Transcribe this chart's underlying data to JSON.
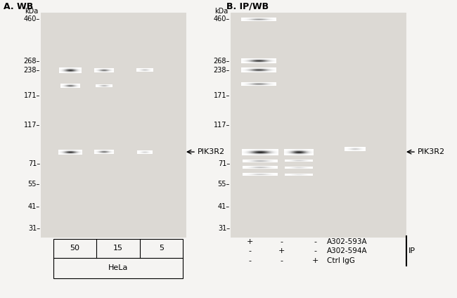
{
  "panel_a_title": "A. WB",
  "panel_b_title": "B. IP/WB",
  "kda_label": "kDa",
  "markers": [
    460,
    268,
    238,
    171,
    117,
    71,
    55,
    41,
    31
  ],
  "marker_labels": [
    "460",
    "268",
    "238",
    "171",
    "117",
    "71",
    "55",
    "41",
    "31"
  ],
  "pik3r2_arrow_label": "PIK3R2",
  "panel_a_lane_labels": [
    "50",
    "15",
    "5"
  ],
  "panel_a_cell_label": "HeLa",
  "ip_col_labels": [
    "+",
    "-",
    "-",
    "A302-593A"
  ],
  "ip_row1": [
    "+",
    "-",
    "-",
    "A302-593A"
  ],
  "ip_row2": [
    "-",
    "+",
    "-",
    "A302-594A"
  ],
  "ip_row3": [
    "-",
    "-",
    "+",
    "Ctrl IgG"
  ],
  "ip_label": "IP",
  "blot_bg": "#dcd9d4",
  "page_bg": "#f5f4f2"
}
